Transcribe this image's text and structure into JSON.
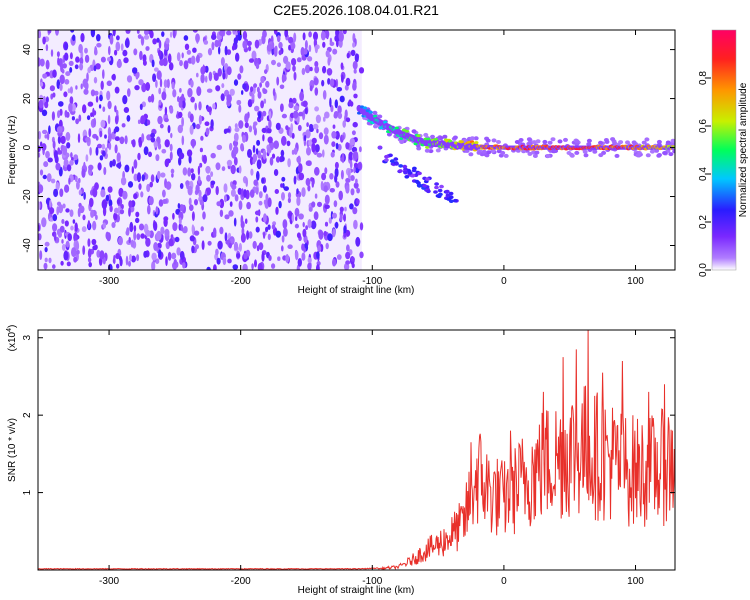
{
  "title": "C2E5.2026.108.04.01.R21",
  "chart_data": [
    {
      "type": "heatmap",
      "name": "spectrogram",
      "xlabel": "Height of straight line (km)",
      "ylabel": "Frequency (Hz)",
      "xlim": [
        -354,
        130
      ],
      "ylim": [
        -50,
        48
      ],
      "x_ticks": [
        -300,
        -200,
        -100,
        0,
        100
      ],
      "x_tick_labels": [
        "-300",
        "-200",
        "-100",
        "0",
        "100"
      ],
      "y_ticks": [
        -40,
        -20,
        0,
        20,
        40
      ],
      "y_tick_labels": [
        "-40",
        "-20",
        "0",
        "20",
        "40"
      ],
      "noise_region": {
        "x_range": [
          -354,
          -108
        ],
        "mean_amplitude": 0.15
      },
      "signal_track": {
        "x": [
          -110,
          -100,
          -90,
          -80,
          -70,
          -60,
          -50,
          -40,
          -30,
          -20,
          -10,
          0,
          20,
          40,
          60,
          80,
          100,
          130
        ],
        "freq": [
          16,
          12,
          9,
          6,
          4,
          2,
          1.5,
          1,
          0.5,
          0.3,
          0.2,
          0,
          0,
          0,
          0,
          0,
          0,
          0
        ],
        "amplitude": [
          0.35,
          0.45,
          0.5,
          0.55,
          0.6,
          0.6,
          0.62,
          0.7,
          0.8,
          0.85,
          0.9,
          0.95,
          0.95,
          0.95,
          0.95,
          0.95,
          0.9,
          0.7
        ]
      },
      "colorbar": {
        "label": "Normalized spectral amplitude",
        "range": [
          0,
          1
        ],
        "ticks": [
          0,
          0.2,
          0.4,
          0.6,
          0.8
        ],
        "tick_labels": [
          "0.0",
          "0.2",
          "0.4",
          "0.6",
          "0.8"
        ],
        "colors": [
          "#ffffff",
          "#8c3cff",
          "#3c28ff",
          "#00d2ff",
          "#00ff50",
          "#f0e600",
          "#ff8c00",
          "#ff0050"
        ]
      }
    },
    {
      "type": "line",
      "name": "snr",
      "xlabel": "Height of straight line (km)",
      "ylabel": "SNR (10 * v/v)",
      "y_exponent_label": "(x10",
      "y_exponent": "4",
      "y_exponent_close": ")",
      "xlim": [
        -354,
        130
      ],
      "ylim": [
        0,
        3.1
      ],
      "x_ticks": [
        -300,
        -200,
        -100,
        0,
        100
      ],
      "x_tick_labels": [
        "-300",
        "-200",
        "-100",
        "0",
        "100"
      ],
      "y_ticks": [
        1,
        2,
        3
      ],
      "y_tick_labels": [
        "1",
        "2",
        "3"
      ],
      "color": "#e8302a",
      "envelope": {
        "x": [
          -354,
          -110,
          -95,
          -80,
          -70,
          -60,
          -50,
          -40,
          -30,
          -25,
          -20,
          -10,
          0,
          10,
          20,
          30,
          40,
          50,
          60,
          70,
          80,
          90,
          100,
          110,
          120,
          130
        ],
        "y": [
          0.01,
          0.01,
          0.02,
          0.05,
          0.15,
          0.3,
          0.4,
          0.55,
          0.75,
          1.2,
          1.5,
          1.2,
          1.1,
          1.3,
          1.5,
          1.65,
          1.75,
          1.85,
          1.9,
          1.8,
          1.75,
          1.6,
          1.55,
          1.55,
          1.6,
          1.75
        ]
      },
      "peaks": [
        {
          "x": -25,
          "y": 1.65
        },
        {
          "x": 5,
          "y": 1.8
        },
        {
          "x": 30,
          "y": 2.3
        },
        {
          "x": 45,
          "y": 2.75
        },
        {
          "x": 55,
          "y": 2.85
        },
        {
          "x": 64,
          "y": 3.1
        },
        {
          "x": 75,
          "y": 2.55
        },
        {
          "x": 90,
          "y": 2.7
        },
        {
          "x": 110,
          "y": 2.3
        },
        {
          "x": 122,
          "y": 2.4
        }
      ]
    }
  ]
}
